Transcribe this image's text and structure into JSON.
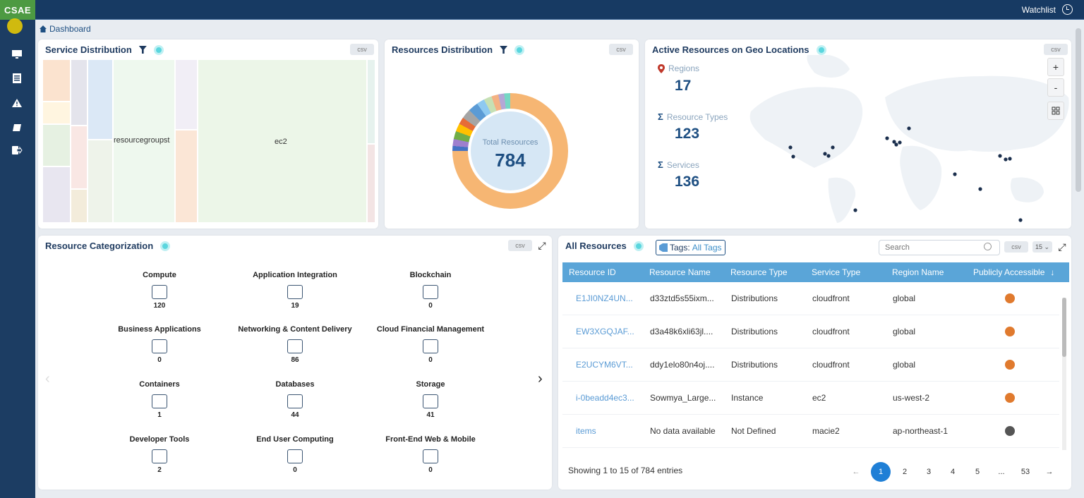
{
  "app": {
    "logo": "CSAE",
    "watchlist": "Watchlist"
  },
  "breadcrumb": "Dashboard",
  "service_distribution": {
    "title": "Service Distribution",
    "csv": "csv",
    "labels": {
      "resourcegroups": "resourcegroupst",
      "ec2": "ec2"
    }
  },
  "resources_distribution": {
    "title": "Resources Distribution",
    "csv": "csv",
    "total_label": "Total Resources",
    "total_value": "784"
  },
  "geo": {
    "title": "Active Resources on Geo Locations",
    "csv": "csv",
    "regions_label": "Regions",
    "regions_value": "17",
    "resource_types_label": "Resource Types",
    "resource_types_value": "123",
    "services_label": "Services",
    "services_value": "136",
    "zoom_in": "+",
    "zoom_out": "-"
  },
  "categorization": {
    "title": "Resource Categorization",
    "csv": "csv",
    "items": [
      {
        "name": "Compute",
        "count": "120"
      },
      {
        "name": "Application Integration",
        "count": "19"
      },
      {
        "name": "Blockchain",
        "count": "0"
      },
      {
        "name": "Business Applications",
        "count": "0"
      },
      {
        "name": "Networking & Content Delivery",
        "count": "86"
      },
      {
        "name": "Cloud Financial Management",
        "count": "0"
      },
      {
        "name": "Containers",
        "count": "1"
      },
      {
        "name": "Databases",
        "count": "44"
      },
      {
        "name": "Storage",
        "count": "41"
      },
      {
        "name": "Developer Tools",
        "count": "2"
      },
      {
        "name": "End User Computing",
        "count": "0"
      },
      {
        "name": "Front-End Web & Mobile",
        "count": "0"
      }
    ]
  },
  "all_resources": {
    "title": "All Resources",
    "tags_label": "Tags:",
    "tags_value": "All Tags",
    "search_placeholder": "Search",
    "csv": "csv",
    "page_size": "15",
    "columns": [
      "Resource ID",
      "Resource Name",
      "Resource Type",
      "Service Type",
      "Region Name",
      "Publicly Accessible"
    ],
    "rows": [
      {
        "id": "E1JI0NZ4UN...",
        "name": "d33ztd5s55ixm...",
        "type": "Distributions",
        "service": "cloudfront",
        "region": "global",
        "public": true
      },
      {
        "id": "EW3XGQJAF...",
        "name": "d3a48k6xli63jl....",
        "type": "Distributions",
        "service": "cloudfront",
        "region": "global",
        "public": true
      },
      {
        "id": "E2UCYM6VT...",
        "name": "ddy1elo80n4oj....",
        "type": "Distributions",
        "service": "cloudfront",
        "region": "global",
        "public": true
      },
      {
        "id": "i-0beadd4ec3...",
        "name": "Sowmya_Large...",
        "type": "Instance",
        "service": "ec2",
        "region": "us-west-2",
        "public": true
      },
      {
        "id": "items",
        "name": "No data available",
        "type": "Not Defined",
        "service": "macie2",
        "region": "ap-northeast-1",
        "public": false
      }
    ],
    "showing": "Showing 1 to 15 of 784 entries",
    "pages": [
      "1",
      "2",
      "3",
      "4",
      "5",
      "...",
      "53"
    ],
    "prev": "←",
    "next": "→"
  }
}
